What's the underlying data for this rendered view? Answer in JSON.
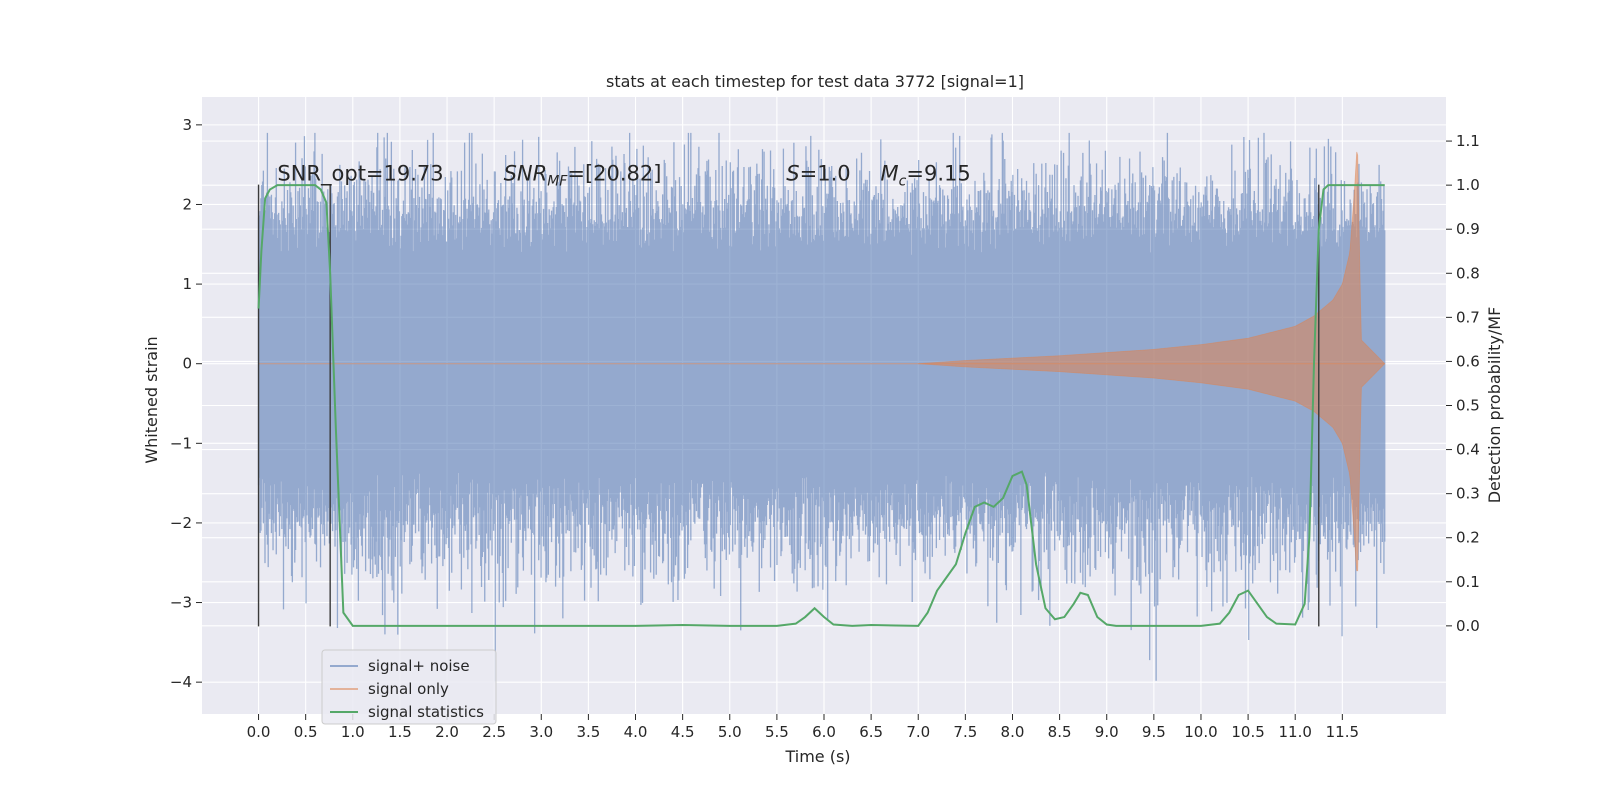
{
  "chart_data": {
    "type": "line",
    "title": "stats at each timestep for test data 3772 [signal=1]",
    "xlabel": "Time (s)",
    "ylabel": "Whitened strain",
    "ylabel_right": "Detection probability/MF",
    "xlim": [
      -0.6,
      12.6
    ],
    "ylim": [
      -4.4,
      3.35
    ],
    "ylim_right": [
      -0.2,
      1.2
    ],
    "x_ticks": [
      0.0,
      0.5,
      1.0,
      1.5,
      2.0,
      2.5,
      3.0,
      3.5,
      4.0,
      4.5,
      5.0,
      5.5,
      6.0,
      6.5,
      7.0,
      7.5,
      8.0,
      8.5,
      9.0,
      9.5,
      10.0,
      10.5,
      11.0,
      11.5
    ],
    "x_tick_labels": [
      "0.0",
      "0.5",
      "1.0",
      "1.5",
      "2.0",
      "2.5",
      "3.0",
      "3.5",
      "4.0",
      "4.5",
      "5.0",
      "5.5",
      "6.0",
      "6.5",
      "7.0",
      "7.5",
      "8.0",
      "8.5",
      "9.0",
      "9.5",
      "10.0",
      "10.5",
      "11.0",
      "11.5"
    ],
    "y_ticks": [
      -4,
      -3,
      -2,
      -1,
      0,
      1,
      2,
      3
    ],
    "y_tick_labels": [
      "−4",
      "−3",
      "−2",
      "−1",
      "0",
      "1",
      "2",
      "3"
    ],
    "y_ticks_right": [
      0.0,
      0.1,
      0.2,
      0.3,
      0.4,
      0.5,
      0.6,
      0.7,
      0.8,
      0.9,
      1.0,
      1.1
    ],
    "y_tick_labels_right": [
      "0.0",
      "0.1",
      "0.2",
      "0.3",
      "0.4",
      "0.5",
      "0.6",
      "0.7",
      "0.8",
      "0.9",
      "1.0",
      "1.1"
    ],
    "grid": true,
    "legend_position": "lower-left",
    "annotations": [
      {
        "text": "SNR_opt=19.73",
        "x": 0.2,
        "y": 2.35
      },
      {
        "text": "SNR",
        "sub": "MF",
        "after": "=[20.82]",
        "italic": true,
        "x": 2.6,
        "y": 2.35
      },
      {
        "text": "S",
        "after": "=1.0",
        "italic": true,
        "x": 5.6,
        "y": 2.35
      },
      {
        "text": "M",
        "sub": "c",
        "after": "=9.15",
        "italic": true,
        "x": 6.6,
        "y": 2.35
      }
    ],
    "vlines": [
      {
        "x": 0.0,
        "y": [
          -3.3,
          2.25
        ]
      },
      {
        "x": 0.76,
        "y": [
          -3.3,
          2.25
        ]
      },
      {
        "x": 11.25,
        "y": [
          -3.3,
          2.25
        ]
      }
    ],
    "series": [
      {
        "name": "signal+ noise",
        "color": "#4c72b0",
        "t_range": [
          0.0,
          11.95
        ],
        "typical_amplitude": 1.8,
        "max": 2.9,
        "min": -4.1
      },
      {
        "name": "signal only",
        "color": "#dd8452",
        "envelope_x": [
          7.0,
          7.5,
          8.0,
          8.5,
          9.0,
          9.5,
          10.0,
          10.5,
          11.0,
          11.2,
          11.4,
          11.5,
          11.58,
          11.63,
          11.66,
          11.7,
          11.95
        ],
        "envelope_y": [
          0.0,
          0.04,
          0.07,
          0.1,
          0.14,
          0.18,
          0.24,
          0.32,
          0.47,
          0.6,
          0.8,
          1.0,
          1.4,
          2.2,
          2.8,
          0.3,
          0.0
        ],
        "min": -2.6
      },
      {
        "name": "signal statistics",
        "color": "#55a868",
        "axis": "right",
        "x": [
          0.0,
          0.03,
          0.07,
          0.12,
          0.2,
          0.3,
          0.45,
          0.6,
          0.66,
          0.72,
          0.76,
          0.82,
          0.9,
          1.0,
          1.5,
          2.0,
          3.0,
          4.0,
          4.5,
          5.0,
          5.5,
          5.7,
          5.8,
          5.9,
          6.0,
          6.1,
          6.3,
          6.5,
          7.0,
          7.1,
          7.2,
          7.3,
          7.4,
          7.5,
          7.6,
          7.7,
          7.8,
          7.9,
          8.0,
          8.1,
          8.15,
          8.25,
          8.35,
          8.45,
          8.55,
          8.65,
          8.72,
          8.8,
          8.9,
          9.0,
          9.1,
          9.3,
          10.0,
          10.2,
          10.3,
          10.4,
          10.5,
          10.6,
          10.7,
          10.8,
          11.0,
          11.1,
          11.15,
          11.2,
          11.25,
          11.3,
          11.35,
          11.45,
          11.6,
          11.7,
          11.8,
          11.95
        ],
        "y": [
          0.72,
          0.85,
          0.97,
          0.99,
          1.0,
          1.0,
          1.0,
          1.0,
          0.99,
          0.96,
          0.8,
          0.45,
          0.03,
          0.0,
          0.0,
          0.0,
          0.0,
          0.0,
          0.002,
          0.0,
          0.0,
          0.005,
          0.02,
          0.04,
          0.02,
          0.003,
          0.0,
          0.002,
          0.0,
          0.03,
          0.08,
          0.11,
          0.14,
          0.21,
          0.27,
          0.28,
          0.27,
          0.29,
          0.34,
          0.35,
          0.32,
          0.14,
          0.04,
          0.015,
          0.02,
          0.05,
          0.075,
          0.07,
          0.02,
          0.003,
          0.0,
          0.0,
          0.0,
          0.005,
          0.03,
          0.07,
          0.08,
          0.05,
          0.02,
          0.005,
          0.003,
          0.05,
          0.2,
          0.6,
          0.9,
          0.99,
          1.0,
          1.0,
          1.0,
          1.0,
          1.0,
          1.0
        ]
      }
    ]
  }
}
